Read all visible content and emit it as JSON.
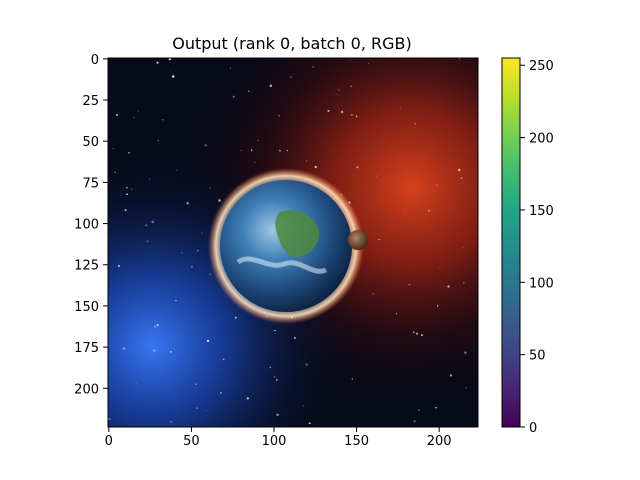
{
  "chart_data": {
    "type": "heatmap",
    "title": "Output (rank 0, batch 0, RGB)",
    "image": {
      "description": "space scene: Earth planet with glowing atmosphere, small moon, blue nebula lower-left, red/orange nebula upper-right, starfield",
      "rows": 224,
      "cols": 224
    },
    "x_axis": {
      "lim": [
        0,
        223
      ],
      "ticks": [
        0,
        50,
        100,
        150,
        200
      ]
    },
    "y_axis": {
      "lim": [
        223,
        0
      ],
      "inverted": true,
      "ticks": [
        0,
        25,
        50,
        75,
        100,
        125,
        150,
        175,
        200
      ]
    },
    "colorbar": {
      "colormap": "viridis",
      "lim": [
        0,
        255
      ],
      "ticks": [
        0,
        50,
        100,
        150,
        200,
        250
      ]
    },
    "grid": false,
    "legend": "none"
  }
}
